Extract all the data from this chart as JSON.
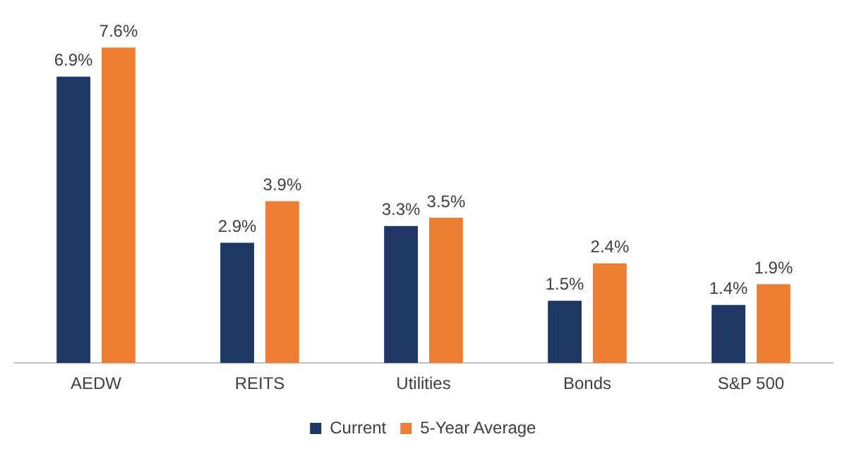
{
  "chart_data": {
    "type": "bar",
    "categories": [
      "AEDW",
      "REITS",
      "Utilities",
      "Bonds",
      "S&P 500"
    ],
    "series": [
      {
        "name": "Current",
        "color": "#1f3864",
        "values": [
          6.9,
          2.9,
          3.3,
          1.5,
          1.4
        ],
        "value_labels": [
          "6.9%",
          "2.9%",
          "3.3%",
          "1.5%",
          "1.4%"
        ]
      },
      {
        "name": "5-Year Average",
        "color": "#ed7d31",
        "values": [
          7.6,
          3.9,
          3.5,
          2.4,
          1.9
        ],
        "value_labels": [
          "7.6%",
          "3.9%",
          "3.5%",
          "2.4%",
          "1.9%"
        ]
      }
    ],
    "legend": "bottom",
    "grid": false
  }
}
